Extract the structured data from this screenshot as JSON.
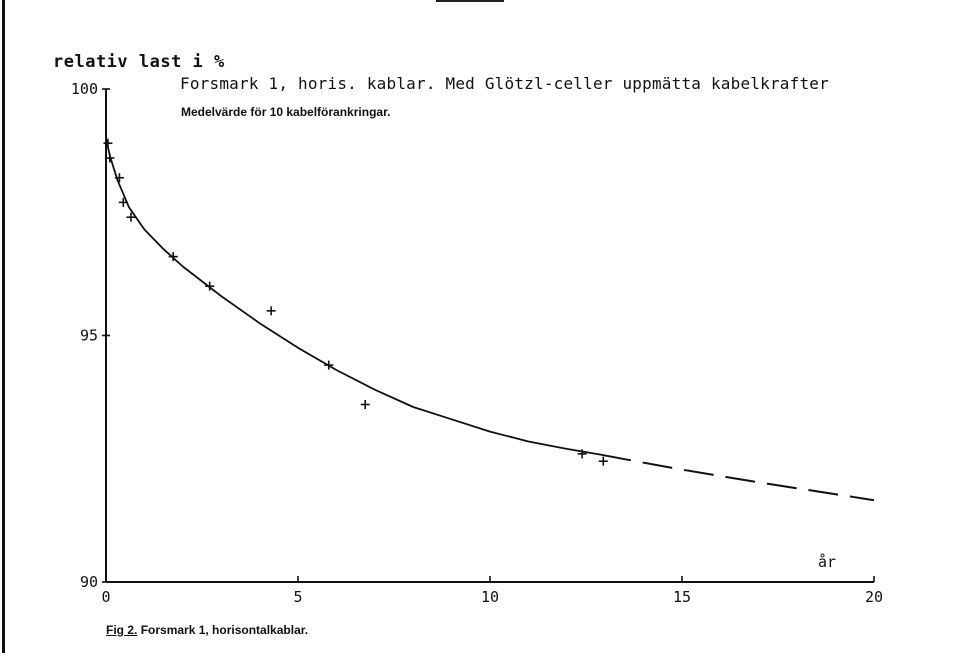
{
  "chart_data": {
    "type": "scatter",
    "ylabel": "relativ last i %",
    "title": "Forsmark 1, horis. kablar. Med Glötzl-celler uppmätta kabelkrafter",
    "subtitle": "Medelvärde för 10 kabelförankringar.",
    "xlabel": "år",
    "caption_fig": "Fig 2.",
    "caption_text": "Forsmark 1, horisontalkablar.",
    "xlim": [
      0,
      20
    ],
    "ylim": [
      90,
      100
    ],
    "x_ticks": [
      0,
      5,
      10,
      15,
      20
    ],
    "y_ticks": [
      90,
      95,
      100
    ],
    "x_tick_labels": [
      "0",
      "5",
      "10",
      "15",
      "20"
    ],
    "y_tick_labels": [
      "90",
      "95",
      "100"
    ],
    "grid": false,
    "points": [
      {
        "x": 0.05,
        "y": 98.9
      },
      {
        "x": 0.1,
        "y": 98.6
      },
      {
        "x": 0.35,
        "y": 98.2
      },
      {
        "x": 0.45,
        "y": 97.7
      },
      {
        "x": 0.65,
        "y": 97.4
      },
      {
        "x": 1.75,
        "y": 96.6
      },
      {
        "x": 2.7,
        "y": 96.0
      },
      {
        "x": 4.3,
        "y": 95.5
      },
      {
        "x": 5.8,
        "y": 94.4
      },
      {
        "x": 6.75,
        "y": 93.6
      },
      {
        "x": 12.4,
        "y": 92.6
      },
      {
        "x": 12.95,
        "y": 92.45
      }
    ],
    "fit_curve": {
      "style": "solid",
      "x": [
        0.0,
        0.1,
        0.3,
        0.6,
        1.0,
        1.5,
        2.0,
        3.0,
        4.0,
        5.0,
        6.0,
        7.0,
        8.0,
        9.0,
        10.0,
        11.0,
        12.0,
        12.9
      ],
      "y": [
        99.0,
        98.65,
        98.15,
        97.6,
        97.15,
        96.75,
        96.4,
        95.8,
        95.25,
        94.75,
        94.3,
        93.9,
        93.55,
        93.3,
        93.05,
        92.85,
        92.7,
        92.58
      ]
    },
    "extrapolation": {
      "style": "dashed",
      "x": [
        12.9,
        14.0,
        15.0,
        16.0,
        17.0,
        18.0,
        19.0,
        20.0
      ],
      "y": [
        92.58,
        92.42,
        92.28,
        92.15,
        92.02,
        91.9,
        91.78,
        91.66
      ]
    }
  }
}
